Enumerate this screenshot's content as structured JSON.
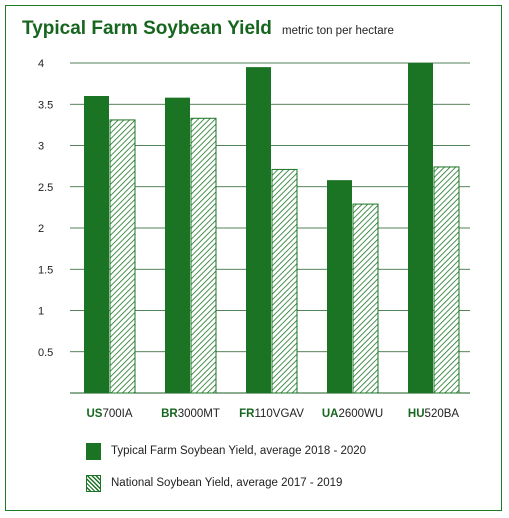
{
  "colors": {
    "frame": "#1f7a28",
    "title": "#17661f",
    "series_fill": "#1a7424",
    "hatch": "#1a7424",
    "grid": "#1a5a20"
  },
  "chart_data": {
    "type": "bar",
    "title": "Typical Farm Soybean Yield",
    "subtitle": "metric ton per hectare",
    "xlabel": "",
    "ylabel": "",
    "ylim": [
      0,
      4
    ],
    "yticks": [
      "0.5",
      "1",
      "1.5",
      "2",
      "2.5",
      "3",
      "3.5",
      "4"
    ],
    "grid": true,
    "legend_position": "bottom",
    "categories": [
      {
        "bold": "US",
        "rest": "700IA"
      },
      {
        "bold": "BR",
        "rest": "3000MT"
      },
      {
        "bold": "FR",
        "rest": "110VGAV"
      },
      {
        "bold": "UA",
        "rest": "2600WU"
      },
      {
        "bold": "HU",
        "rest": "520BA"
      }
    ],
    "series": [
      {
        "name": "Typical Farm Soybean Yield, average 2018 - 2020",
        "style": "solid",
        "values": [
          3.6,
          3.58,
          3.95,
          2.58,
          4.0
        ]
      },
      {
        "name": "National Soybean Yield, average 2017 - 2019",
        "style": "hatched",
        "values": [
          3.31,
          3.33,
          2.71,
          2.29,
          2.74
        ]
      }
    ]
  }
}
